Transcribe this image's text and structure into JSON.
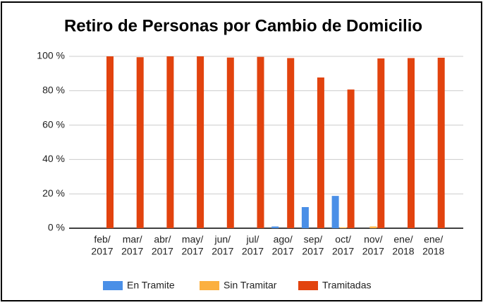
{
  "chart_data": {
    "type": "bar",
    "title": "Retiro de Personas por Cambio de Domicilio",
    "categories": [
      [
        "feb/",
        "2017"
      ],
      [
        "mar/",
        "2017"
      ],
      [
        "abr/",
        "2017"
      ],
      [
        "may/",
        "2017"
      ],
      [
        "jun/",
        "2017"
      ],
      [
        "jul/",
        "2017"
      ],
      [
        "ago/",
        "2017"
      ],
      [
        "sep/",
        "2017"
      ],
      [
        "oct/",
        "2017"
      ],
      [
        "nov/",
        "2017"
      ],
      [
        "ene/",
        "2018"
      ],
      [
        "ene/",
        "2018"
      ]
    ],
    "series": [
      {
        "name": "En Tramite",
        "color": "#4a8fe7",
        "values": [
          0,
          0,
          0,
          0,
          0,
          0,
          1,
          12.3,
          18.8,
          0,
          0,
          0
        ]
      },
      {
        "name": "Sin Tramitar",
        "color": "#fbb040",
        "values": [
          0,
          0,
          0,
          0,
          0,
          0,
          0,
          0,
          0.5,
          1,
          0,
          0
        ]
      },
      {
        "name": "Tramitadas",
        "color": "#e2430e",
        "values": [
          100,
          99.5,
          100,
          100,
          99.3,
          99.7,
          99,
          87.7,
          80.7,
          98.8,
          99,
          99.2
        ]
      }
    ],
    "ylim": [
      0,
      100
    ],
    "yticks": [
      {
        "value": 0,
        "label": "0 %"
      },
      {
        "value": 20,
        "label": "20 %"
      },
      {
        "value": 40,
        "label": "40 %"
      },
      {
        "value": 60,
        "label": "60 %"
      },
      {
        "value": 80,
        "label": "80 %"
      },
      {
        "value": 100,
        "label": "100 %"
      }
    ],
    "grid": true,
    "legend": "bottom"
  }
}
